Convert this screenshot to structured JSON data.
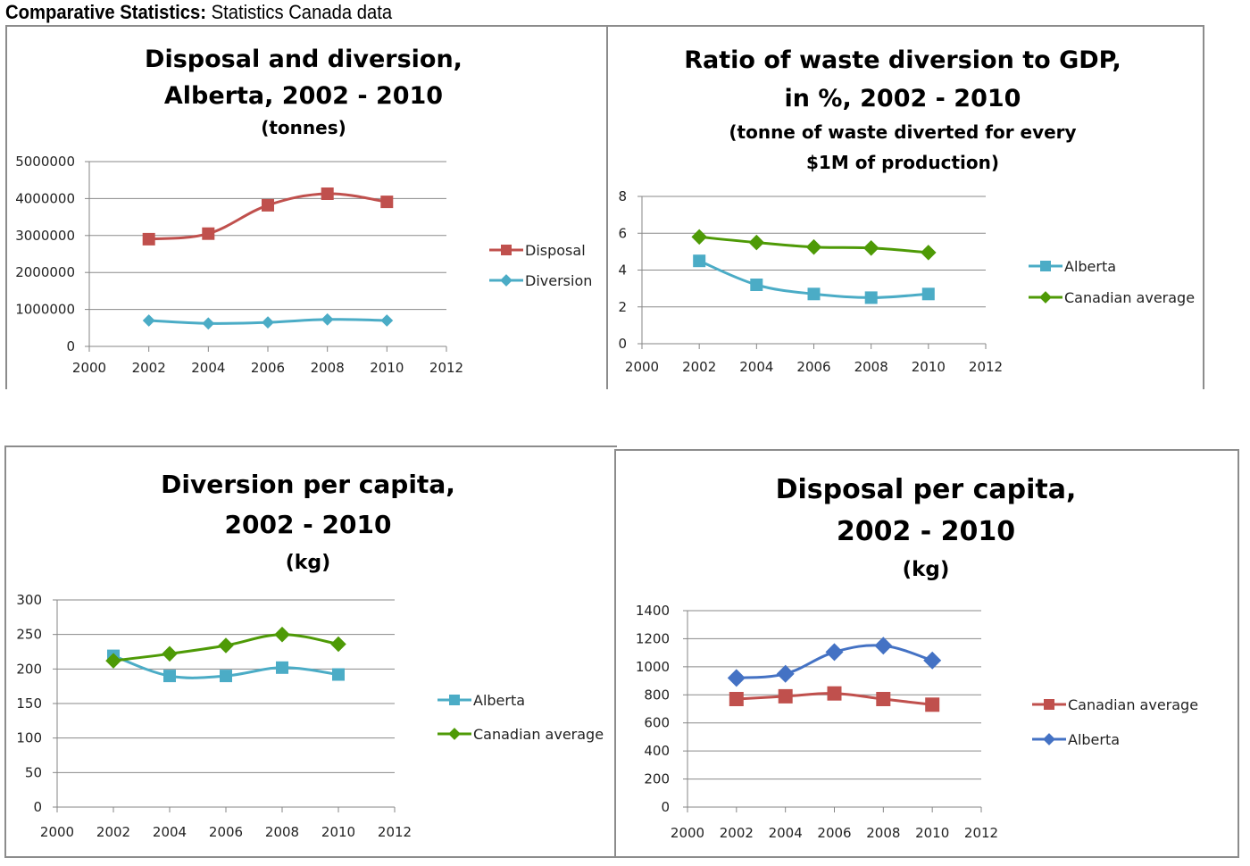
{
  "header": {
    "label": "Comparative Statistics:",
    "text": " Statistics Canada data"
  },
  "chart_data": [
    {
      "type": "line",
      "title": [
        "Disposal and diversion,",
        "Alberta, 2002 - 2010"
      ],
      "subtitle": [
        "(tonnes)"
      ],
      "x": [
        2002,
        2004,
        2006,
        2008,
        2010
      ],
      "xlim": [
        2000,
        2012
      ],
      "xticks": [
        2000,
        2002,
        2004,
        2006,
        2008,
        2010,
        2012
      ],
      "ylim": [
        0,
        5000000
      ],
      "yticks": [
        0,
        1000000,
        2000000,
        3000000,
        4000000,
        5000000
      ],
      "grid": true,
      "legend": "right",
      "series": [
        {
          "name": "Disposal",
          "color": "#c0504d",
          "marker": "square",
          "values": [
            2900000,
            3050000,
            3820000,
            4130000,
            3910000
          ]
        },
        {
          "name": "Diversion",
          "color": "#4bacc6",
          "marker": "diamond",
          "values": [
            700000,
            620000,
            650000,
            730000,
            700000
          ]
        }
      ]
    },
    {
      "type": "line",
      "title": [
        "Ratio of waste diversion to GDP,",
        "in %, 2002 - 2010"
      ],
      "subtitle": [
        "(tonne of waste diverted for every",
        "$1M of production)"
      ],
      "x": [
        2002,
        2004,
        2006,
        2008,
        2010
      ],
      "xlim": [
        2000,
        2012
      ],
      "xticks": [
        2000,
        2002,
        2004,
        2006,
        2008,
        2010,
        2012
      ],
      "ylim": [
        0,
        8
      ],
      "yticks": [
        0,
        2,
        4,
        6,
        8
      ],
      "grid": true,
      "legend": "right",
      "series": [
        {
          "name": "Alberta",
          "color": "#4bacc6",
          "marker": "square",
          "values": [
            4.5,
            3.2,
            2.7,
            2.5,
            2.7
          ]
        },
        {
          "name": "Canadian average",
          "color": "#4e9a06",
          "marker": "diamond",
          "values": [
            5.8,
            5.5,
            5.25,
            5.2,
            4.95
          ]
        }
      ]
    },
    {
      "type": "line",
      "title": [
        "Diversion per capita,",
        "2002 - 2010"
      ],
      "subtitle": [
        "(kg)"
      ],
      "x": [
        2002,
        2004,
        2006,
        2008,
        2010
      ],
      "xlim": [
        2000,
        2012
      ],
      "xticks": [
        2000,
        2002,
        2004,
        2006,
        2008,
        2010,
        2012
      ],
      "ylim": [
        0,
        300
      ],
      "yticks": [
        0,
        50,
        100,
        150,
        200,
        250,
        300
      ],
      "grid": true,
      "legend": "right",
      "series": [
        {
          "name": "Alberta",
          "color": "#4bacc6",
          "marker": "square",
          "values": [
            219,
            190,
            190,
            202,
            192
          ]
        },
        {
          "name": "Canadian average",
          "color": "#4e9a06",
          "marker": "diamond",
          "values": [
            212,
            222,
            234,
            250,
            236
          ]
        }
      ]
    },
    {
      "type": "line",
      "title": [
        "Disposal per capita,",
        "2002 - 2010"
      ],
      "subtitle": [
        "(kg)"
      ],
      "x": [
        2002,
        2004,
        2006,
        2008,
        2010
      ],
      "xlim": [
        2000,
        2012
      ],
      "xticks": [
        2000,
        2002,
        2004,
        2006,
        2008,
        2010,
        2012
      ],
      "ylim": [
        0,
        1400
      ],
      "yticks": [
        0,
        200,
        400,
        600,
        800,
        1000,
        1200,
        1400
      ],
      "grid": true,
      "legend": "right",
      "series": [
        {
          "name": "Canadian average",
          "color": "#c0504d",
          "marker": "square",
          "values": [
            770,
            790,
            810,
            770,
            730
          ]
        },
        {
          "name": "Alberta",
          "color": "#4472c4",
          "marker": "diamond",
          "values": [
            920,
            950,
            1105,
            1150,
            1045
          ]
        }
      ]
    }
  ]
}
